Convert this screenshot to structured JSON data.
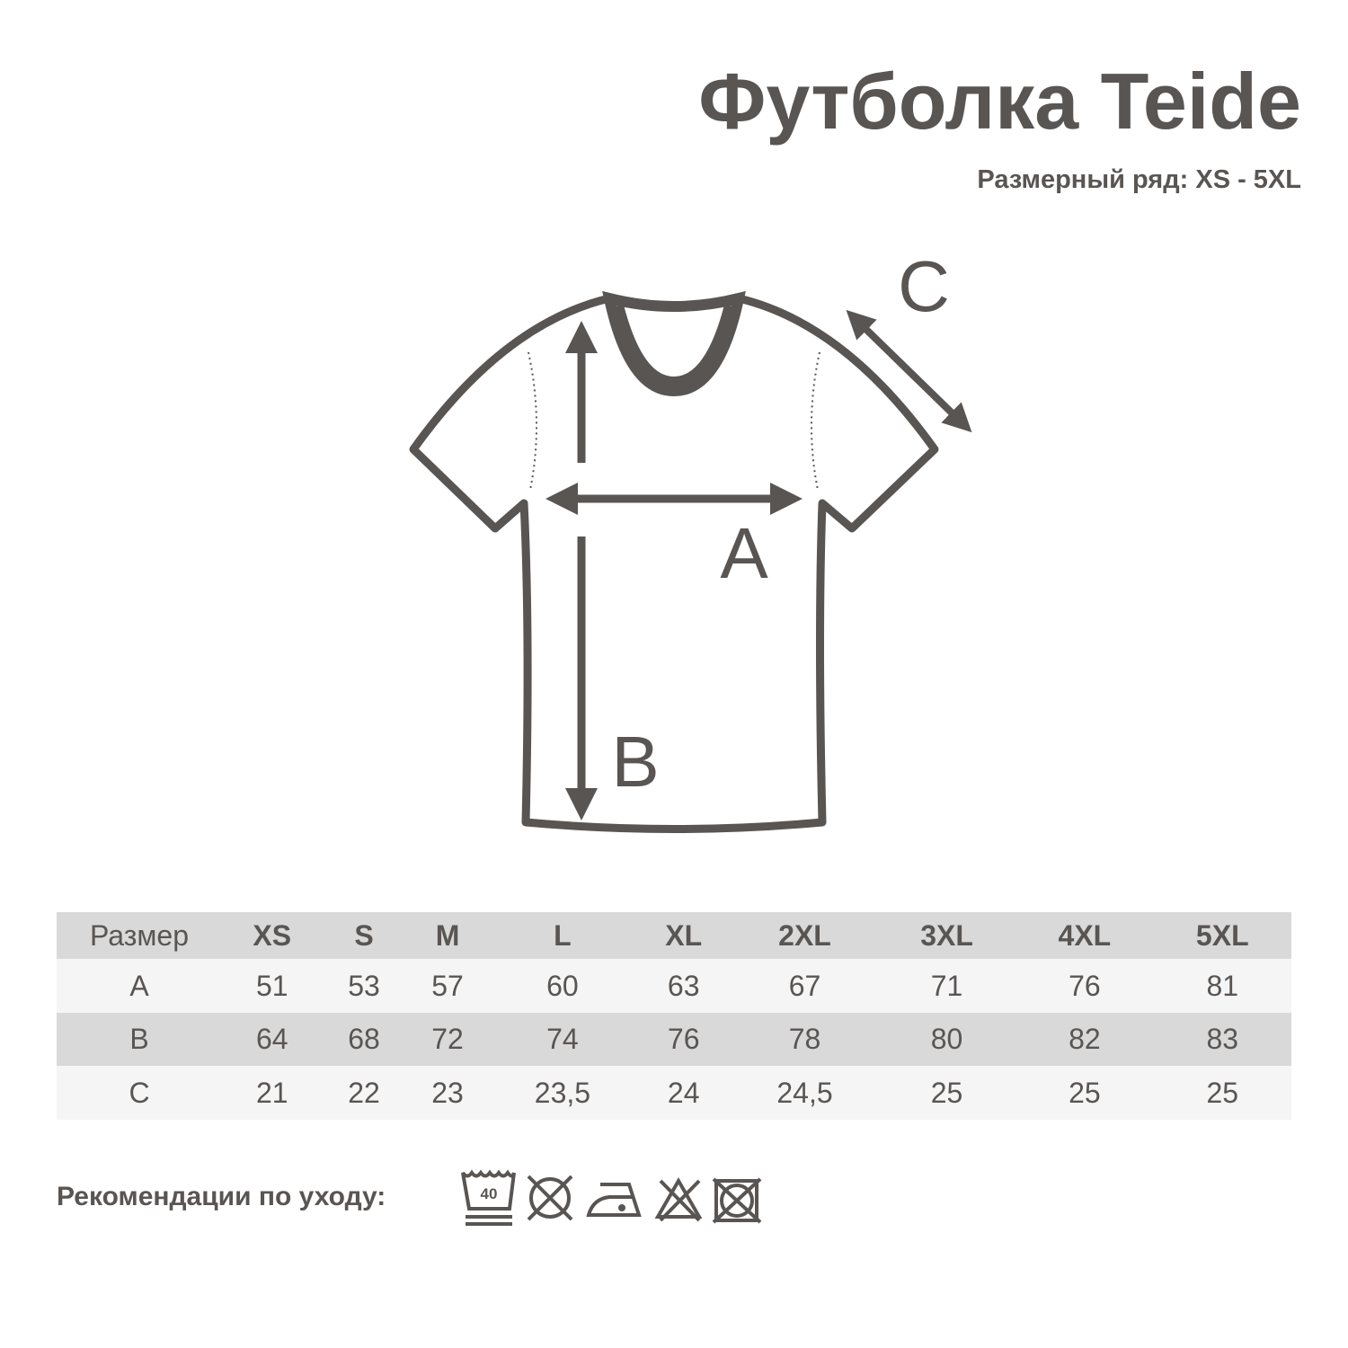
{
  "title": "Футболка Teide",
  "subtitle": "Размерный ряд: XS - 5XL",
  "diagram": {
    "label_a": "A",
    "label_b": "B",
    "label_c": "C"
  },
  "table": {
    "header": [
      "Размер",
      "XS",
      "S",
      "M",
      "L",
      "XL",
      "2XL",
      "3XL",
      "4XL",
      "5XL"
    ],
    "rows": [
      [
        "A",
        "51",
        "53",
        "57",
        "60",
        "63",
        "67",
        "71",
        "76",
        "81"
      ],
      [
        "B",
        "64",
        "68",
        "72",
        "74",
        "76",
        "78",
        "80",
        "82",
        "83"
      ],
      [
        "C",
        "21",
        "22",
        "23",
        "23,5",
        "24",
        "24,5",
        "25",
        "25",
        "25"
      ]
    ]
  },
  "care": {
    "label": "Рекомендации по уходу:",
    "wash_temp": "40",
    "icons": [
      "wash-40-icon",
      "no-tumble-dry-icon",
      "iron-low-icon",
      "no-bleach-icon",
      "no-dry-clean-icon"
    ]
  },
  "colors": {
    "ink": "#595553",
    "row_dark": "#d9d9d9",
    "row_light": "#f5f5f5"
  }
}
